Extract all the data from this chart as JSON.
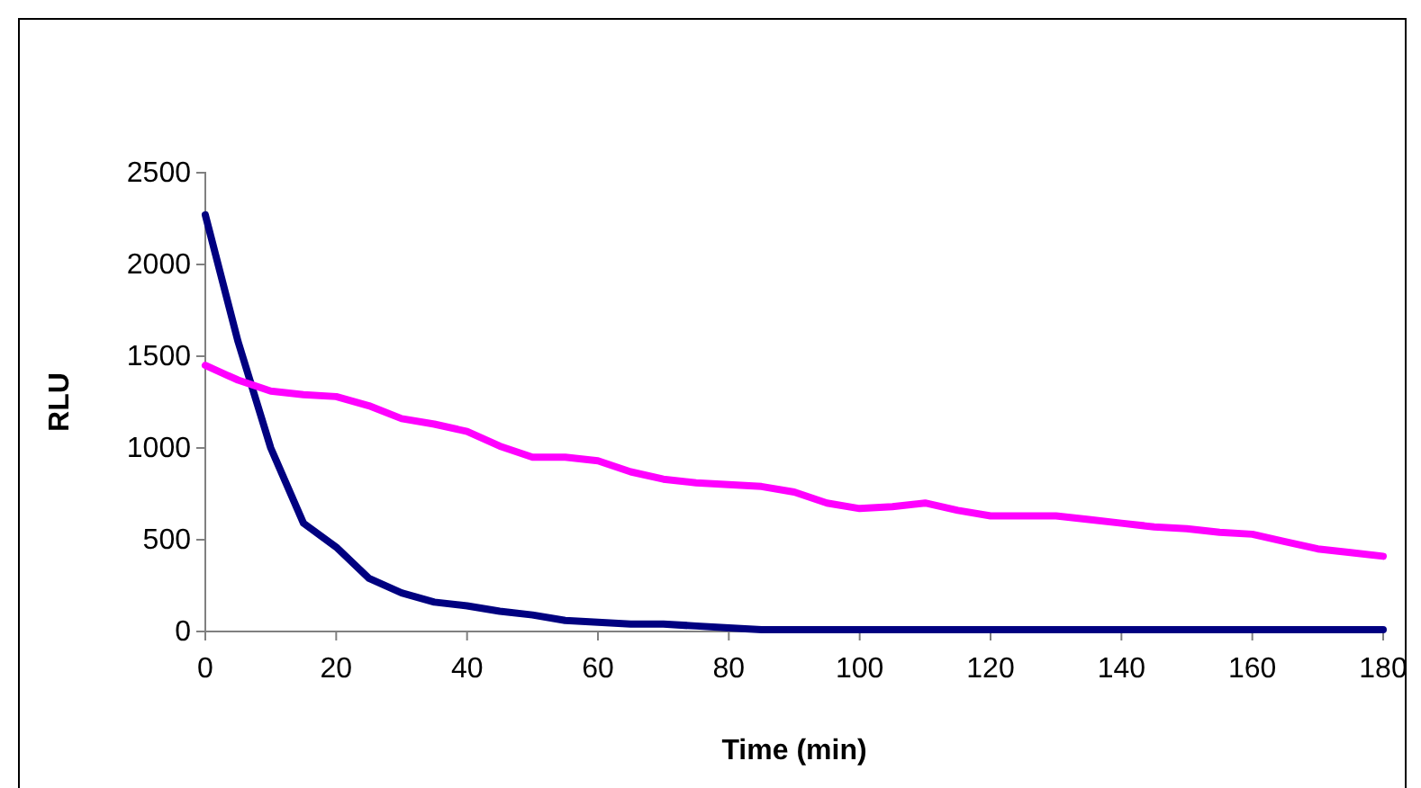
{
  "chart_data": {
    "type": "line",
    "xlabel": "Time (min)",
    "ylabel": "RLU",
    "x": [
      0,
      5,
      10,
      15,
      20,
      25,
      30,
      35,
      40,
      45,
      50,
      55,
      60,
      65,
      70,
      75,
      80,
      85,
      90,
      95,
      100,
      105,
      110,
      115,
      120,
      125,
      130,
      135,
      140,
      145,
      150,
      155,
      160,
      165,
      170,
      175,
      180
    ],
    "series": [
      {
        "color": "#000080",
        "values": [
          2270,
          1580,
          1000,
          590,
          460,
          290,
          210,
          160,
          140,
          110,
          90,
          60,
          50,
          40,
          40,
          30,
          20,
          10,
          10,
          10,
          10,
          10,
          10,
          10,
          10,
          10,
          10,
          10,
          10,
          10,
          10,
          10,
          10,
          10,
          10,
          10,
          10
        ]
      },
      {
        "color": "#ff00ff",
        "values": [
          1450,
          1370,
          1310,
          1290,
          1280,
          1230,
          1160,
          1130,
          1090,
          1010,
          950,
          950,
          930,
          870,
          830,
          810,
          800,
          790,
          760,
          700,
          670,
          680,
          700,
          660,
          630,
          630,
          630,
          610,
          590,
          570,
          560,
          540,
          530,
          490,
          450,
          430,
          410
        ]
      }
    ],
    "xlim": [
      0,
      180
    ],
    "xticks": [
      0,
      20,
      40,
      60,
      80,
      100,
      120,
      140,
      160,
      180
    ],
    "ylim": [
      0,
      2500
    ],
    "yticks": [
      0,
      500,
      1000,
      1500,
      2000,
      2500
    ],
    "grid": false,
    "marker": "none",
    "line_style": "solid"
  }
}
